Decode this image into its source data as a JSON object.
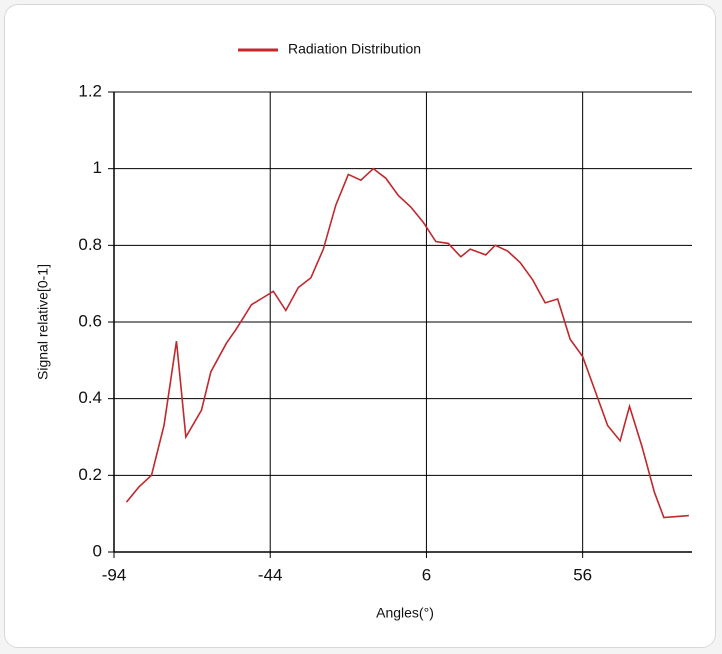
{
  "chart_data": {
    "type": "line",
    "legend": "top",
    "x_label": "Angles(°)",
    "y_label": "Signal relative[0-1]",
    "x": [
      -90,
      -86,
      -82,
      -78,
      -74,
      -71,
      -66,
      -63,
      -58,
      -55,
      -50,
      -47,
      -43,
      -39,
      -35,
      -31,
      -27,
      -23,
      -19,
      -15,
      -11,
      -7,
      -3,
      1,
      5,
      9,
      13,
      17,
      20,
      25,
      28,
      32,
      36,
      40,
      44,
      48,
      52,
      56,
      60,
      64,
      68,
      71,
      75,
      79,
      82,
      90
    ],
    "series": [
      {
        "name": "Radiation Distribution",
        "color": "#c0282d",
        "values": [
          0.13,
          0.17,
          0.2,
          0.33,
          0.55,
          0.3,
          0.37,
          0.47,
          0.545,
          0.58,
          0.645,
          0.66,
          0.68,
          0.63,
          0.69,
          0.715,
          0.79,
          0.905,
          0.985,
          0.97,
          1.0,
          0.975,
          0.93,
          0.9,
          0.86,
          0.81,
          0.805,
          0.77,
          0.79,
          0.775,
          0.8,
          0.785,
          0.755,
          0.71,
          0.65,
          0.66,
          0.555,
          0.51,
          0.42,
          0.33,
          0.29,
          0.38,
          0.275,
          0.155,
          0.09,
          0.095
        ]
      }
    ],
    "xlim": [
      -94,
      91
    ],
    "xticks": [
      -94,
      -44,
      6,
      56
    ],
    "ylim": [
      0,
      1.2
    ],
    "yticks": [
      0,
      0.2,
      0.4,
      0.6,
      0.8,
      1,
      1.2
    ],
    "grid": true
  }
}
